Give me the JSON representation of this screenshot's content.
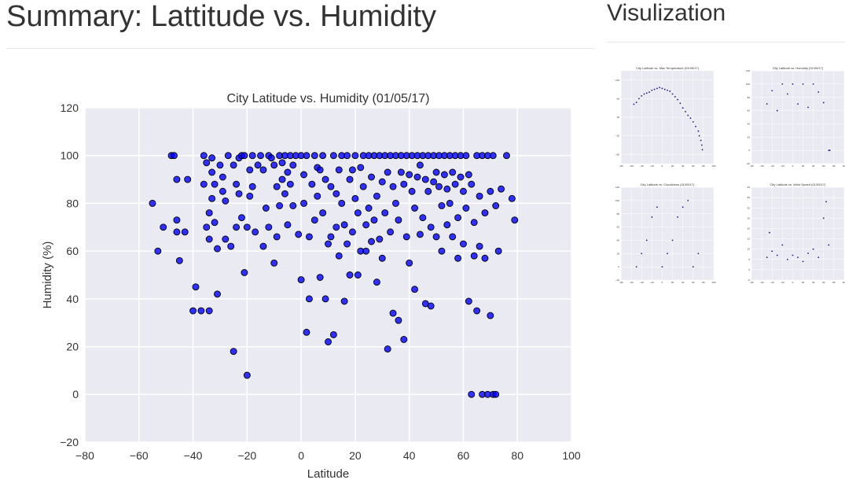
{
  "page": {
    "title": "Summary: Lattitude vs. Humidity",
    "sidebar_title": "Visulization"
  },
  "colors": {
    "plot_bg": "#eaeaf2",
    "grid": "#ffffff",
    "marker": "#0000ff",
    "marker_edge": "#000000",
    "thumb_marker": "#000080"
  },
  "chart_data": [
    {
      "type": "scatter",
      "title": "City Latitude vs. Humidity (01/05/17)",
      "xlabel": "Latitude",
      "ylabel": "Humidity (%)",
      "xlim": [
        -80,
        100
      ],
      "ylim": [
        -20,
        120
      ],
      "xticks": [
        -80,
        -60,
        -40,
        -20,
        0,
        20,
        40,
        60,
        80,
        100
      ],
      "yticks": [
        -20,
        0,
        20,
        40,
        60,
        80,
        100,
        120
      ],
      "grid": true,
      "legend": "none",
      "points": [
        [
          -55,
          80
        ],
        [
          -53,
          60
        ],
        [
          -51,
          70
        ],
        [
          -48,
          100
        ],
        [
          -47,
          100
        ],
        [
          -46,
          90
        ],
        [
          -46,
          68
        ],
        [
          -46,
          73
        ],
        [
          -45,
          56
        ],
        [
          -43,
          68
        ],
        [
          -42,
          90
        ],
        [
          -40,
          35
        ],
        [
          -39,
          45
        ],
        [
          -37,
          35
        ],
        [
          -36,
          100
        ],
        [
          -36,
          88
        ],
        [
          -35,
          70
        ],
        [
          -35,
          97
        ],
        [
          -34,
          65
        ],
        [
          -34,
          35
        ],
        [
          -34,
          76
        ],
        [
          -33,
          99
        ],
        [
          -33,
          82
        ],
        [
          -33,
          93
        ],
        [
          -32,
          88
        ],
        [
          -32,
          72
        ],
        [
          -31,
          42
        ],
        [
          -31,
          61
        ],
        [
          -30,
          96
        ],
        [
          -29,
          91
        ],
        [
          -29,
          85
        ],
        [
          -28,
          81
        ],
        [
          -28,
          65
        ],
        [
          -27,
          100
        ],
        [
          -26,
          62
        ],
        [
          -25,
          18
        ],
        [
          -25,
          96
        ],
        [
          -24,
          70
        ],
        [
          -24,
          88
        ],
        [
          -23,
          84
        ],
        [
          -23,
          99
        ],
        [
          -22,
          100
        ],
        [
          -22,
          74
        ],
        [
          -21,
          100
        ],
        [
          -21,
          51
        ],
        [
          -20,
          8
        ],
        [
          -20,
          70
        ],
        [
          -19,
          83
        ],
        [
          -19,
          94
        ],
        [
          -18,
          87
        ],
        [
          -18,
          100
        ],
        [
          -17,
          68
        ],
        [
          -16,
          96
        ],
        [
          -15,
          100
        ],
        [
          -14,
          62
        ],
        [
          -14,
          94
        ],
        [
          -13,
          78
        ],
        [
          -12,
          100
        ],
        [
          -12,
          70
        ],
        [
          -11,
          99
        ],
        [
          -10,
          96
        ],
        [
          -10,
          55
        ],
        [
          -9,
          87
        ],
        [
          -9,
          66
        ],
        [
          -8,
          100
        ],
        [
          -8,
          79
        ],
        [
          -7,
          90
        ],
        [
          -7,
          97
        ],
        [
          -6,
          84
        ],
        [
          -6,
          100
        ],
        [
          -5,
          93
        ],
        [
          -5,
          71
        ],
        [
          -4,
          100
        ],
        [
          -4,
          88
        ],
        [
          -3,
          96
        ],
        [
          -3,
          79
        ],
        [
          -2,
          100
        ],
        [
          -1,
          67
        ],
        [
          0,
          100
        ],
        [
          0,
          48
        ],
        [
          1,
          92
        ],
        [
          1,
          80
        ],
        [
          2,
          100
        ],
        [
          2,
          26
        ],
        [
          3,
          66
        ],
        [
          3,
          40
        ],
        [
          4,
          88
        ],
        [
          5,
          100
        ],
        [
          5,
          73
        ],
        [
          6,
          95
        ],
        [
          6,
          83
        ],
        [
          7,
          94
        ],
        [
          7,
          49
        ],
        [
          8,
          100
        ],
        [
          8,
          76
        ],
        [
          9,
          90
        ],
        [
          9,
          40
        ],
        [
          10,
          63
        ],
        [
          10,
          22
        ],
        [
          11,
          87
        ],
        [
          11,
          66
        ],
        [
          12,
          100
        ],
        [
          12,
          25
        ],
        [
          13,
          70
        ],
        [
          13,
          84
        ],
        [
          14,
          94
        ],
        [
          14,
          58
        ],
        [
          15,
          100
        ],
        [
          15,
          80
        ],
        [
          16,
          71
        ],
        [
          16,
          39
        ],
        [
          17,
          100
        ],
        [
          17,
          63
        ],
        [
          18,
          90
        ],
        [
          18,
          50
        ],
        [
          19,
          94
        ],
        [
          19,
          68
        ],
        [
          20,
          100
        ],
        [
          20,
          82
        ],
        [
          21,
          76
        ],
        [
          21,
          50
        ],
        [
          22,
          95
        ],
        [
          22,
          60
        ],
        [
          23,
          100
        ],
        [
          23,
          87
        ],
        [
          24,
          71
        ],
        [
          24,
          60
        ],
        [
          25,
          100
        ],
        [
          25,
          78
        ],
        [
          26,
          91
        ],
        [
          26,
          64
        ],
        [
          27,
          100
        ],
        [
          27,
          73
        ],
        [
          28,
          83
        ],
        [
          28,
          47
        ],
        [
          29,
          100
        ],
        [
          29,
          65
        ],
        [
          30,
          89
        ],
        [
          30,
          57
        ],
        [
          31,
          100
        ],
        [
          31,
          76
        ],
        [
          32,
          93
        ],
        [
          32,
          19
        ],
        [
          33,
          100
        ],
        [
          33,
          68
        ],
        [
          34,
          87
        ],
        [
          34,
          34
        ],
        [
          35,
          100
        ],
        [
          35,
          80
        ],
        [
          36,
          73
        ],
        [
          36,
          31
        ],
        [
          37,
          100
        ],
        [
          37,
          93
        ],
        [
          38,
          88
        ],
        [
          38,
          23
        ],
        [
          39,
          100
        ],
        [
          39,
          66
        ],
        [
          40,
          92
        ],
        [
          40,
          55
        ],
        [
          41,
          100
        ],
        [
          41,
          85
        ],
        [
          42,
          78
        ],
        [
          42,
          44
        ],
        [
          43,
          100
        ],
        [
          43,
          91
        ],
        [
          44,
          96
        ],
        [
          44,
          67
        ],
        [
          45,
          100
        ],
        [
          45,
          74
        ],
        [
          46,
          90
        ],
        [
          46,
          38
        ],
        [
          47,
          100
        ],
        [
          47,
          85
        ],
        [
          48,
          70
        ],
        [
          48,
          37
        ],
        [
          49,
          100
        ],
        [
          49,
          89
        ],
        [
          50,
          93
        ],
        [
          50,
          66
        ],
        [
          51,
          100
        ],
        [
          51,
          87
        ],
        [
          52,
          79
        ],
        [
          52,
          60
        ],
        [
          53,
          100
        ],
        [
          53,
          92
        ],
        [
          54,
          86
        ],
        [
          54,
          71
        ],
        [
          55,
          100
        ],
        [
          55,
          80
        ],
        [
          56,
          93
        ],
        [
          56,
          66
        ],
        [
          57,
          100
        ],
        [
          57,
          88
        ],
        [
          58,
          74
        ],
        [
          58,
          57
        ],
        [
          59,
          100
        ],
        [
          59,
          91
        ],
        [
          60,
          85
        ],
        [
          60,
          63
        ],
        [
          61,
          100
        ],
        [
          61,
          78
        ],
        [
          62,
          92
        ],
        [
          62,
          39
        ],
        [
          63,
          0
        ],
        [
          63,
          88
        ],
        [
          64,
          72
        ],
        [
          64,
          58
        ],
        [
          65,
          100
        ],
        [
          65,
          35
        ],
        [
          66,
          83
        ],
        [
          66,
          62
        ],
        [
          67,
          100
        ],
        [
          67,
          0
        ],
        [
          68,
          76
        ],
        [
          68,
          57
        ],
        [
          69,
          100
        ],
        [
          69,
          0
        ],
        [
          70,
          85
        ],
        [
          70,
          33
        ],
        [
          71,
          100
        ],
        [
          71,
          0
        ],
        [
          72,
          79
        ],
        [
          72,
          0
        ],
        [
          73,
          60
        ],
        [
          74,
          86
        ],
        [
          76,
          100
        ],
        [
          78,
          82
        ],
        [
          79,
          73
        ]
      ]
    },
    {
      "type": "scatter",
      "title": "City Latitude vs. Max Temperature (01/05/17)",
      "xlim": [
        -80,
        100
      ],
      "ylim": [
        -80,
        120
      ],
      "xticks": [
        -80,
        -60,
        -40,
        -20,
        0,
        20,
        40,
        60,
        80,
        100
      ],
      "yticks": [
        -60,
        -20,
        20,
        60,
        100
      ],
      "points": [
        [
          -55,
          48
        ],
        [
          -50,
          52
        ],
        [
          -45,
          60
        ],
        [
          -40,
          66
        ],
        [
          -35,
          70
        ],
        [
          -30,
          72
        ],
        [
          -25,
          74
        ],
        [
          -20,
          78
        ],
        [
          -15,
          80
        ],
        [
          -10,
          82
        ],
        [
          -5,
          84
        ],
        [
          0,
          82
        ],
        [
          5,
          80
        ],
        [
          10,
          78
        ],
        [
          15,
          76
        ],
        [
          20,
          70
        ],
        [
          25,
          64
        ],
        [
          30,
          58
        ],
        [
          35,
          50
        ],
        [
          40,
          40
        ],
        [
          45,
          32
        ],
        [
          50,
          24
        ],
        [
          55,
          18
        ],
        [
          60,
          10
        ],
        [
          65,
          0
        ],
        [
          70,
          -10
        ],
        [
          72,
          -20
        ],
        [
          75,
          -30
        ],
        [
          77,
          -40
        ],
        [
          78,
          -50
        ]
      ]
    },
    {
      "type": "scatter",
      "title": "City Latitude vs. Humidity (01/05/17)",
      "xlim": [
        -80,
        100
      ],
      "ylim": [
        -20,
        120
      ],
      "xticks": [
        -80,
        -60,
        -40,
        -20,
        0,
        20,
        40,
        60,
        80,
        100
      ],
      "yticks": [
        -20,
        0,
        20,
        40,
        60,
        80,
        100,
        120
      ],
      "points": [
        [
          -50,
          70
        ],
        [
          -40,
          90
        ],
        [
          -30,
          60
        ],
        [
          -20,
          100
        ],
        [
          -10,
          85
        ],
        [
          0,
          100
        ],
        [
          10,
          70
        ],
        [
          20,
          100
        ],
        [
          30,
          65
        ],
        [
          40,
          100
        ],
        [
          50,
          88
        ],
        [
          60,
          72
        ],
        [
          70,
          0
        ],
        [
          72,
          0
        ]
      ]
    },
    {
      "type": "scatter",
      "title": "City Latitude vs. Cloudiness (01/05/17)",
      "xlim": [
        -80,
        100
      ],
      "ylim": [
        -20,
        120
      ],
      "xticks": [
        -80,
        -60,
        -40,
        -20,
        0,
        20,
        40,
        60,
        80,
        100
      ],
      "yticks": [
        -20,
        0,
        20,
        40,
        60,
        80,
        100,
        120
      ],
      "points": [
        [
          -50,
          0
        ],
        [
          -40,
          20
        ],
        [
          -30,
          40
        ],
        [
          -20,
          75
        ],
        [
          -10,
          90
        ],
        [
          0,
          0
        ],
        [
          10,
          20
        ],
        [
          20,
          40
        ],
        [
          30,
          75
        ],
        [
          40,
          90
        ],
        [
          50,
          100
        ],
        [
          60,
          0
        ],
        [
          70,
          20
        ]
      ]
    },
    {
      "type": "scatter",
      "title": "City Latitude vs. Wind Speed (01/05/17)",
      "xlim": [
        -80,
        100
      ],
      "ylim": [
        -5,
        40
      ],
      "xticks": [
        -80,
        -60,
        -40,
        -20,
        0,
        20,
        40,
        60,
        80,
        100
      ],
      "yticks": [
        -5,
        0,
        5,
        10,
        15,
        20,
        25,
        30,
        35,
        40
      ],
      "points": [
        [
          -50,
          6
        ],
        [
          -45,
          18
        ],
        [
          -40,
          9
        ],
        [
          -30,
          7
        ],
        [
          -20,
          12
        ],
        [
          -10,
          5
        ],
        [
          0,
          7
        ],
        [
          10,
          6
        ],
        [
          20,
          4
        ],
        [
          30,
          8
        ],
        [
          40,
          10
        ],
        [
          50,
          6
        ],
        [
          60,
          25
        ],
        [
          65,
          33
        ],
        [
          70,
          12
        ]
      ]
    }
  ]
}
